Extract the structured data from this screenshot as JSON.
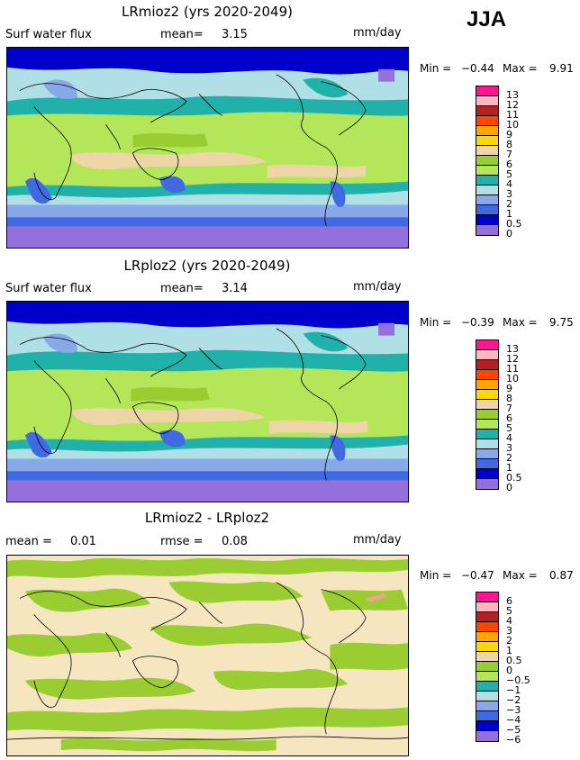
{
  "season": "JJA",
  "units": "mm/day",
  "panels": [
    {
      "title": "LRmioz2 (yrs 2020-2049)",
      "left_label": "Surf water flux",
      "mean_label": "mean=",
      "mean_value": "3.15",
      "min_label": "Min =",
      "min_value": "−0.44",
      "max_label": "Max =",
      "max_value": "9.91",
      "colorbar_labels": [
        "13",
        "12",
        "11",
        "10",
        "9",
        "8",
        "7",
        "6",
        "5",
        "4",
        "3",
        "2",
        "1",
        "0.5",
        "0"
      ]
    },
    {
      "title": "LRploz2 (yrs 2020-2049)",
      "left_label": "Surf water flux",
      "mean_label": "mean=",
      "mean_value": "3.14",
      "min_label": "Min =",
      "min_value": "−0.39",
      "max_label": "Max =",
      "max_value": "9.75",
      "colorbar_labels": [
        "13",
        "12",
        "11",
        "10",
        "9",
        "8",
        "7",
        "6",
        "5",
        "4",
        "3",
        "2",
        "1",
        "0.5",
        "0"
      ]
    },
    {
      "title": "LRmioz2 - LRploz2",
      "left_label": "mean =",
      "left_value": "0.01",
      "rmse_label": "rmse =",
      "rmse_value": "0.08",
      "min_label": "Min =",
      "min_value": "−0.47",
      "max_label": "Max =",
      "max_value": "0.87",
      "colorbar_labels": [
        "6",
        "5",
        "4",
        "3",
        "2",
        "1",
        "0.5",
        "0",
        "−0.5",
        "−1",
        "−2",
        "−3",
        "−4",
        "−5",
        "−6"
      ]
    }
  ],
  "colors": {
    "scale": [
      "#ff1493",
      "#ffb6c1",
      "#b22222",
      "#ff4500",
      "#ffa500",
      "#ffd700",
      "#eed5a8",
      "#9acd32",
      "#b4e65a",
      "#20b2aa",
      "#b0e0e6",
      "#87a9e8",
      "#4169e1",
      "#0000cd",
      "#9370db"
    ]
  }
}
